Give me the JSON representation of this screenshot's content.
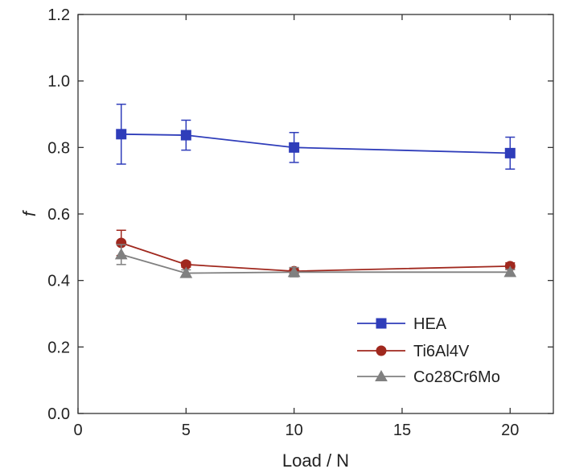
{
  "chart_data": {
    "type": "line",
    "xlabel": "Load / N",
    "ylabel": "f",
    "xlim": [
      0,
      22
    ],
    "ylim": [
      0.0,
      1.2
    ],
    "x_ticks": [
      "0",
      "5",
      "10",
      "15",
      "20"
    ],
    "y_ticks": [
      "0.0",
      "0.2",
      "0.4",
      "0.6",
      "0.8",
      "1.0",
      "1.2"
    ],
    "grid": false,
    "legend_position": "bottom-right",
    "series": [
      {
        "name": "HEA",
        "color": "#2F3DBA",
        "marker": "square",
        "x": [
          2,
          5,
          10,
          20
        ],
        "y": [
          0.84,
          0.837,
          0.8,
          0.783
        ],
        "yerr": [
          0.09,
          0.045,
          0.045,
          0.048
        ]
      },
      {
        "name": "Ti6Al4V",
        "color": "#A0281E",
        "marker": "circle",
        "x": [
          2,
          5,
          10,
          20
        ],
        "y": [
          0.513,
          0.448,
          0.428,
          0.443
        ],
        "yerr": [
          0.038,
          0.008,
          0.01,
          0.01
        ]
      },
      {
        "name": "Co28Cr6Mo",
        "color": "#808080",
        "marker": "triangle",
        "x": [
          2,
          5,
          10,
          20
        ],
        "y": [
          0.478,
          0.422,
          0.425,
          0.425
        ],
        "yerr": [
          0.03,
          0.01,
          0.014,
          0.008
        ]
      }
    ]
  }
}
